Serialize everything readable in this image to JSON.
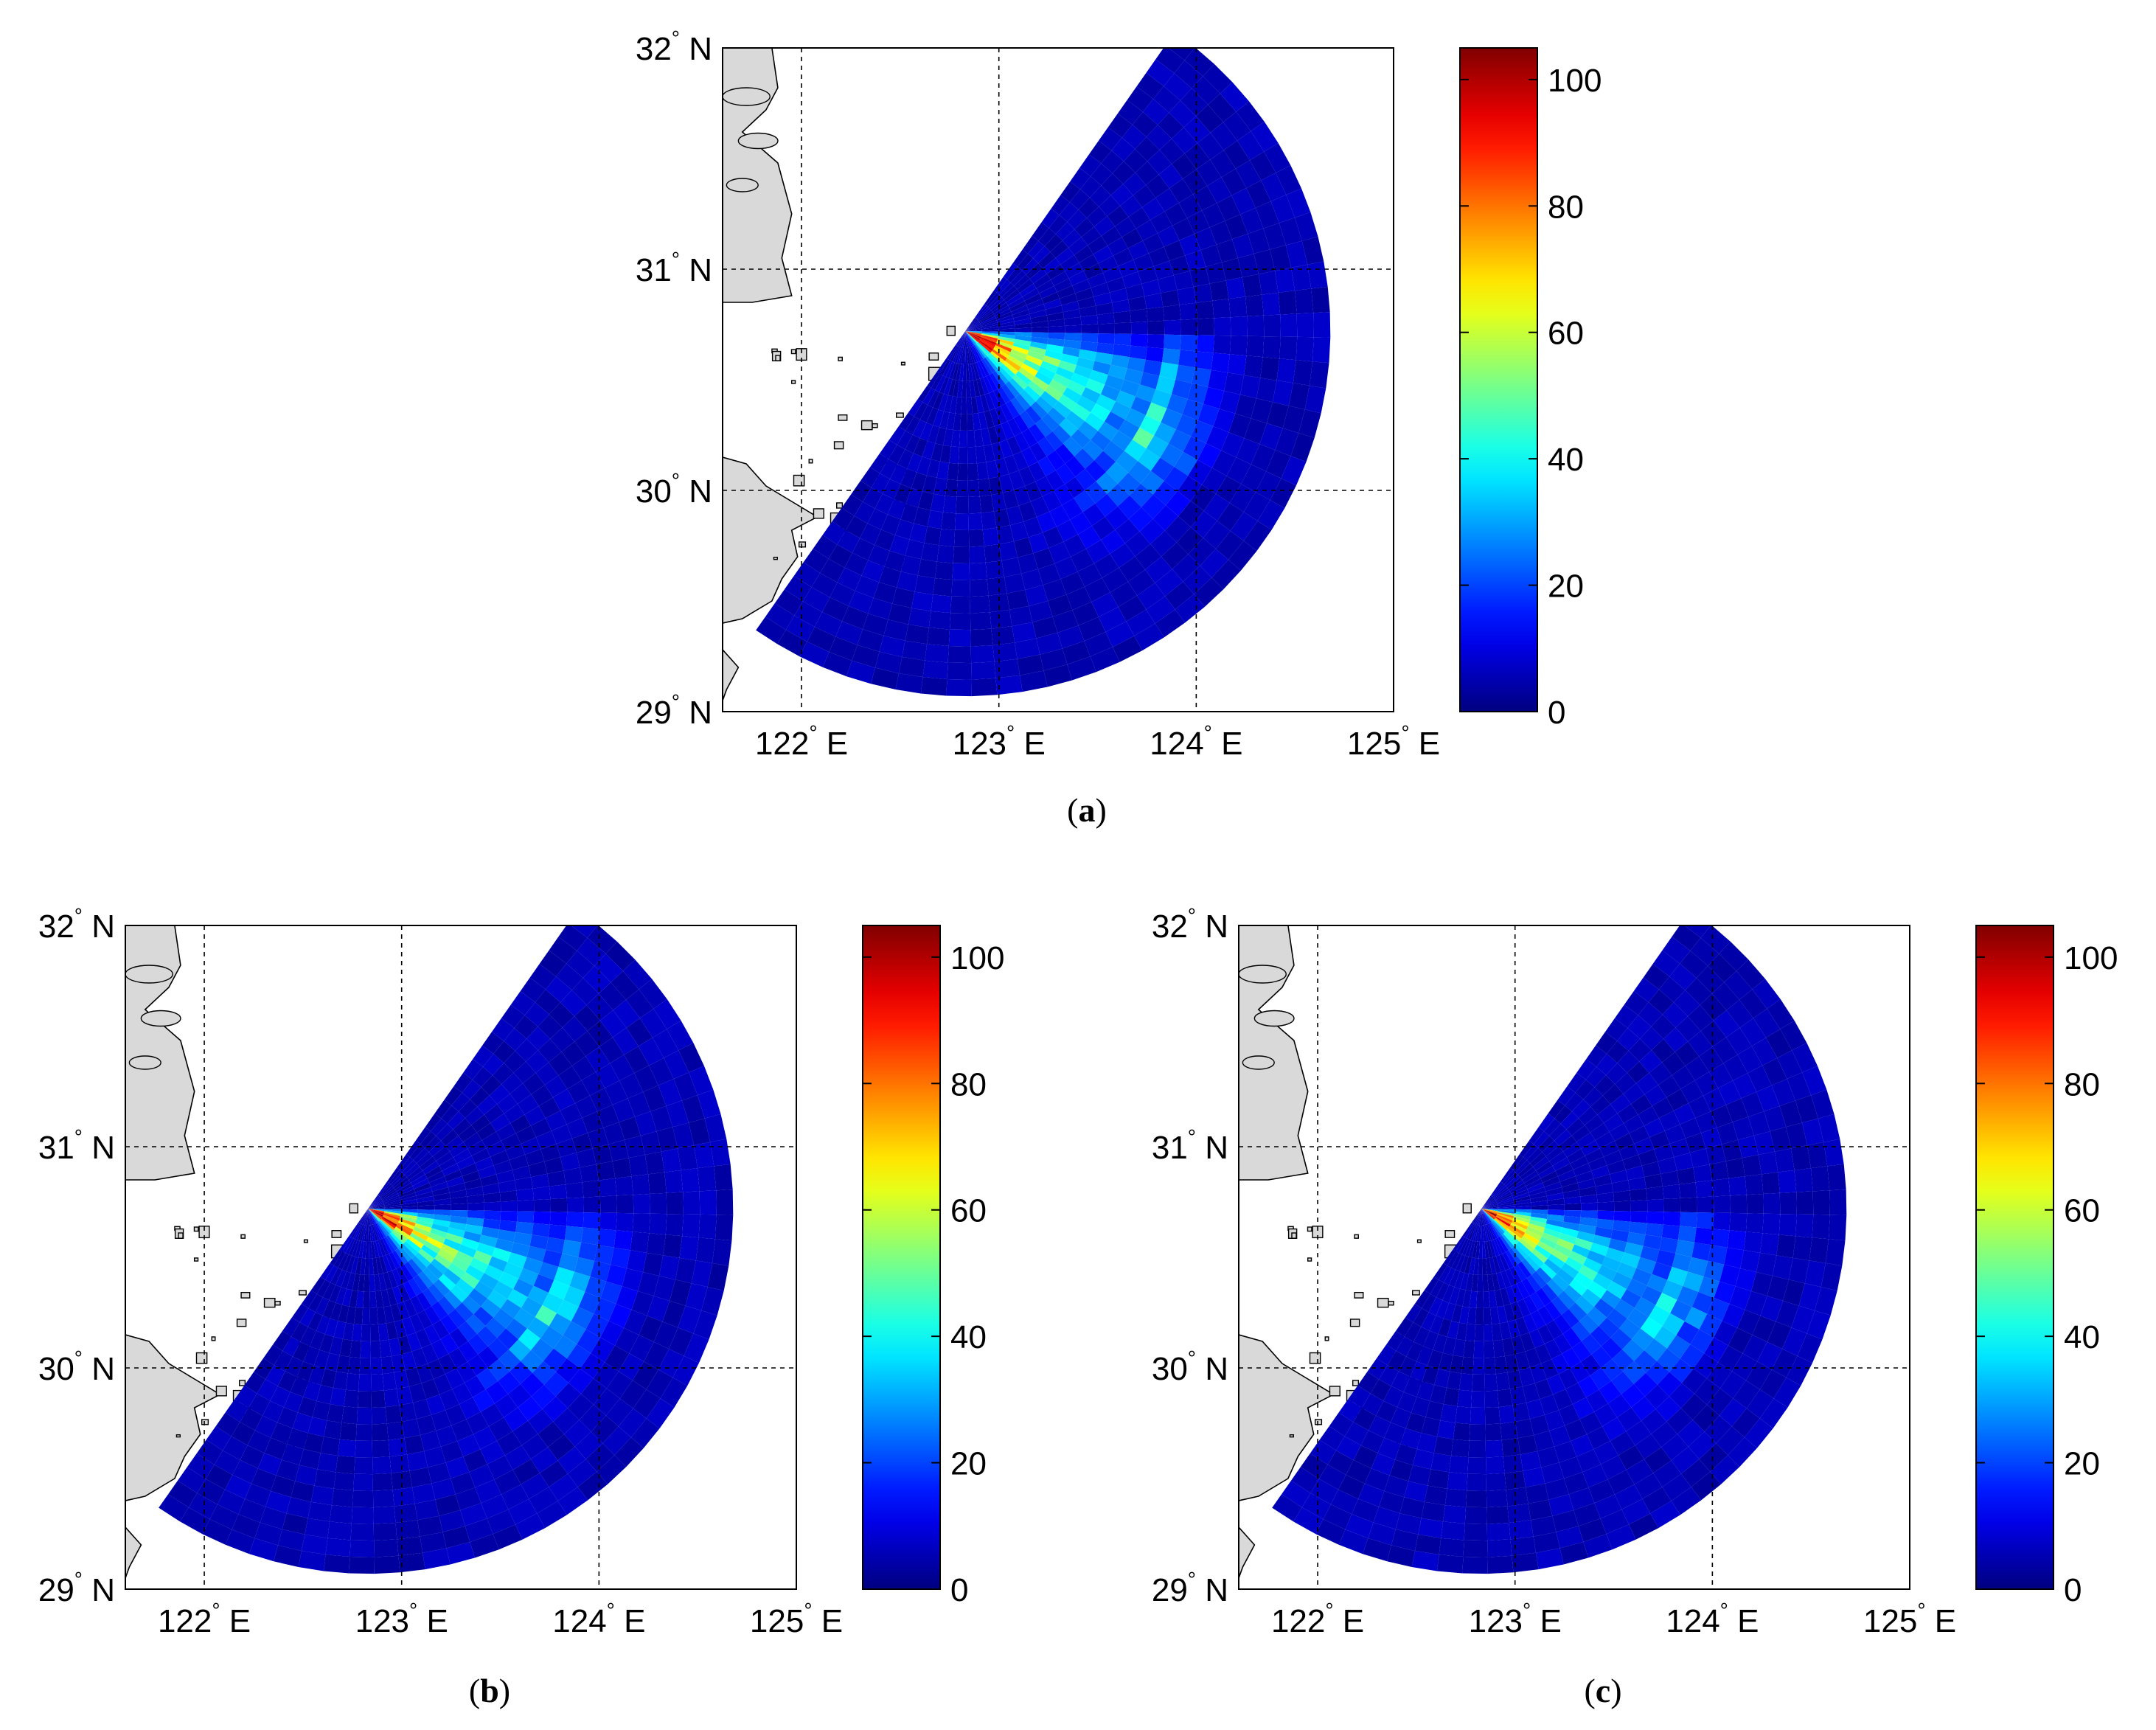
{
  "figure": {
    "panels": [
      {
        "id": "a",
        "caption_open": "(",
        "caption_letter": "a",
        "caption_close": ")"
      },
      {
        "id": "b",
        "caption_open": "(",
        "caption_letter": "b",
        "caption_close": ")"
      },
      {
        "id": "c",
        "caption_open": "(",
        "caption_letter": "c",
        "caption_close": ")"
      }
    ],
    "map": {
      "lon_range": [
        121.6,
        125.0
      ],
      "lat_range": [
        29.0,
        32.0
      ],
      "lon_ticks": [
        {
          "value": 122,
          "label": "122",
          "unit": "E"
        },
        {
          "value": 123,
          "label": "123",
          "unit": "E"
        },
        {
          "value": 124,
          "label": "124",
          "unit": "E"
        },
        {
          "value": 125,
          "label": "125",
          "unit": "E"
        }
      ],
      "lat_ticks": [
        {
          "value": 29,
          "label": "29",
          "unit": "N"
        },
        {
          "value": 30,
          "label": "30",
          "unit": "N"
        },
        {
          "value": 31,
          "label": "31",
          "unit": "N"
        },
        {
          "value": 32,
          "label": "32",
          "unit": "N"
        }
      ],
      "grid": "dashed",
      "degree_symbol": "°",
      "land_color": "#d9d9d9",
      "sea_color": "#ffffff",
      "radar_site": {
        "lon": 122.83,
        "lat": 30.72
      },
      "sector": {
        "outer_range_deg": 1.85,
        "bearing_start_deg": 35,
        "bearing_end_deg": 212,
        "background_value": 3
      }
    },
    "colorbar": {
      "colormap": "jet",
      "range": [
        0,
        105
      ],
      "ticks": [
        0,
        20,
        40,
        60,
        80,
        100
      ]
    }
  }
}
